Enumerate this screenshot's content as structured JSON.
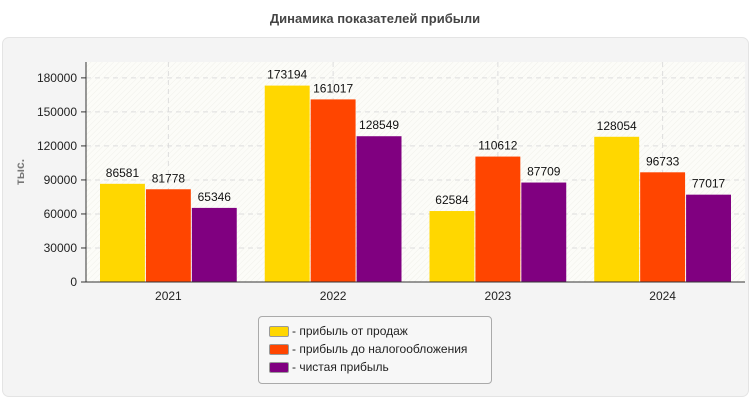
{
  "chart_data": {
    "type": "bar",
    "title": "Динамика показателей прибыли",
    "ylabel": "тыс.",
    "xlabel": "",
    "ylim": [
      0,
      194000
    ],
    "yticks": [
      0,
      30000,
      60000,
      90000,
      120000,
      150000,
      180000
    ],
    "grid": true,
    "legend_placement": "bottom",
    "categories": [
      "2021",
      "2022",
      "2023",
      "2024"
    ],
    "series": [
      {
        "name": "- прибыль от продаж",
        "color": "#FFD700",
        "values": [
          86581,
          173194,
          62584,
          128054
        ]
      },
      {
        "name": "- прибыль до налогообложения",
        "color": "#FF4500",
        "values": [
          81778,
          161017,
          110612,
          96733
        ]
      },
      {
        "name": "- чистая прибыль",
        "color": "#800080",
        "values": [
          65346,
          128549,
          87709,
          77017
        ]
      }
    ]
  }
}
